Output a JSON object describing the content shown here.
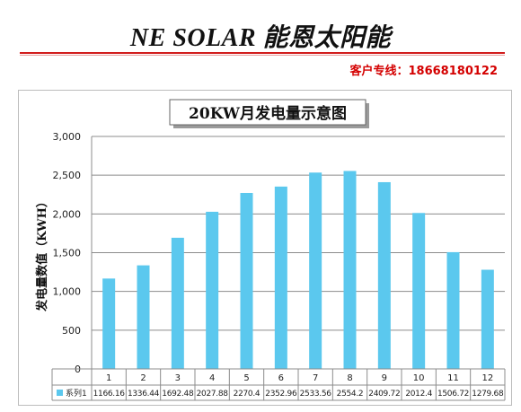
{
  "header": {
    "title": "NE SOLAR  能恩太阳能",
    "hotline_label": "客户专线：",
    "hotline_number": "18668180122"
  },
  "chart_data": {
    "type": "bar",
    "title": "20KW月发电量示意图",
    "ylabel": "发电量数值（KWH）",
    "xlabel": "",
    "ylim": [
      0,
      3000
    ],
    "yticks": [
      0,
      500,
      1000,
      1500,
      2000,
      2500,
      3000
    ],
    "ytick_labels": [
      "0",
      "500",
      "1,000",
      "1,500",
      "2,000",
      "2,500",
      "3,000"
    ],
    "categories": [
      "1",
      "2",
      "3",
      "4",
      "5",
      "6",
      "7",
      "8",
      "9",
      "10",
      "11",
      "12"
    ],
    "series": [
      {
        "name": "系列1",
        "values": [
          1166.16,
          1336.44,
          1692.48,
          2027.88,
          2270.4,
          2352.96,
          2533.56,
          2554.2,
          2409.72,
          2012.4,
          1506.72,
          1279.68
        ],
        "value_labels": [
          "1166.16",
          "1336.44",
          "1692.48",
          "2027.88",
          "2270.4",
          "2352.96",
          "2533.56",
          "2554.2",
          "2409.72",
          "2012.4",
          "1506.72",
          "1279.68"
        ],
        "color": "#5bc8ee"
      }
    ],
    "grid": true,
    "legend": "data-table"
  }
}
